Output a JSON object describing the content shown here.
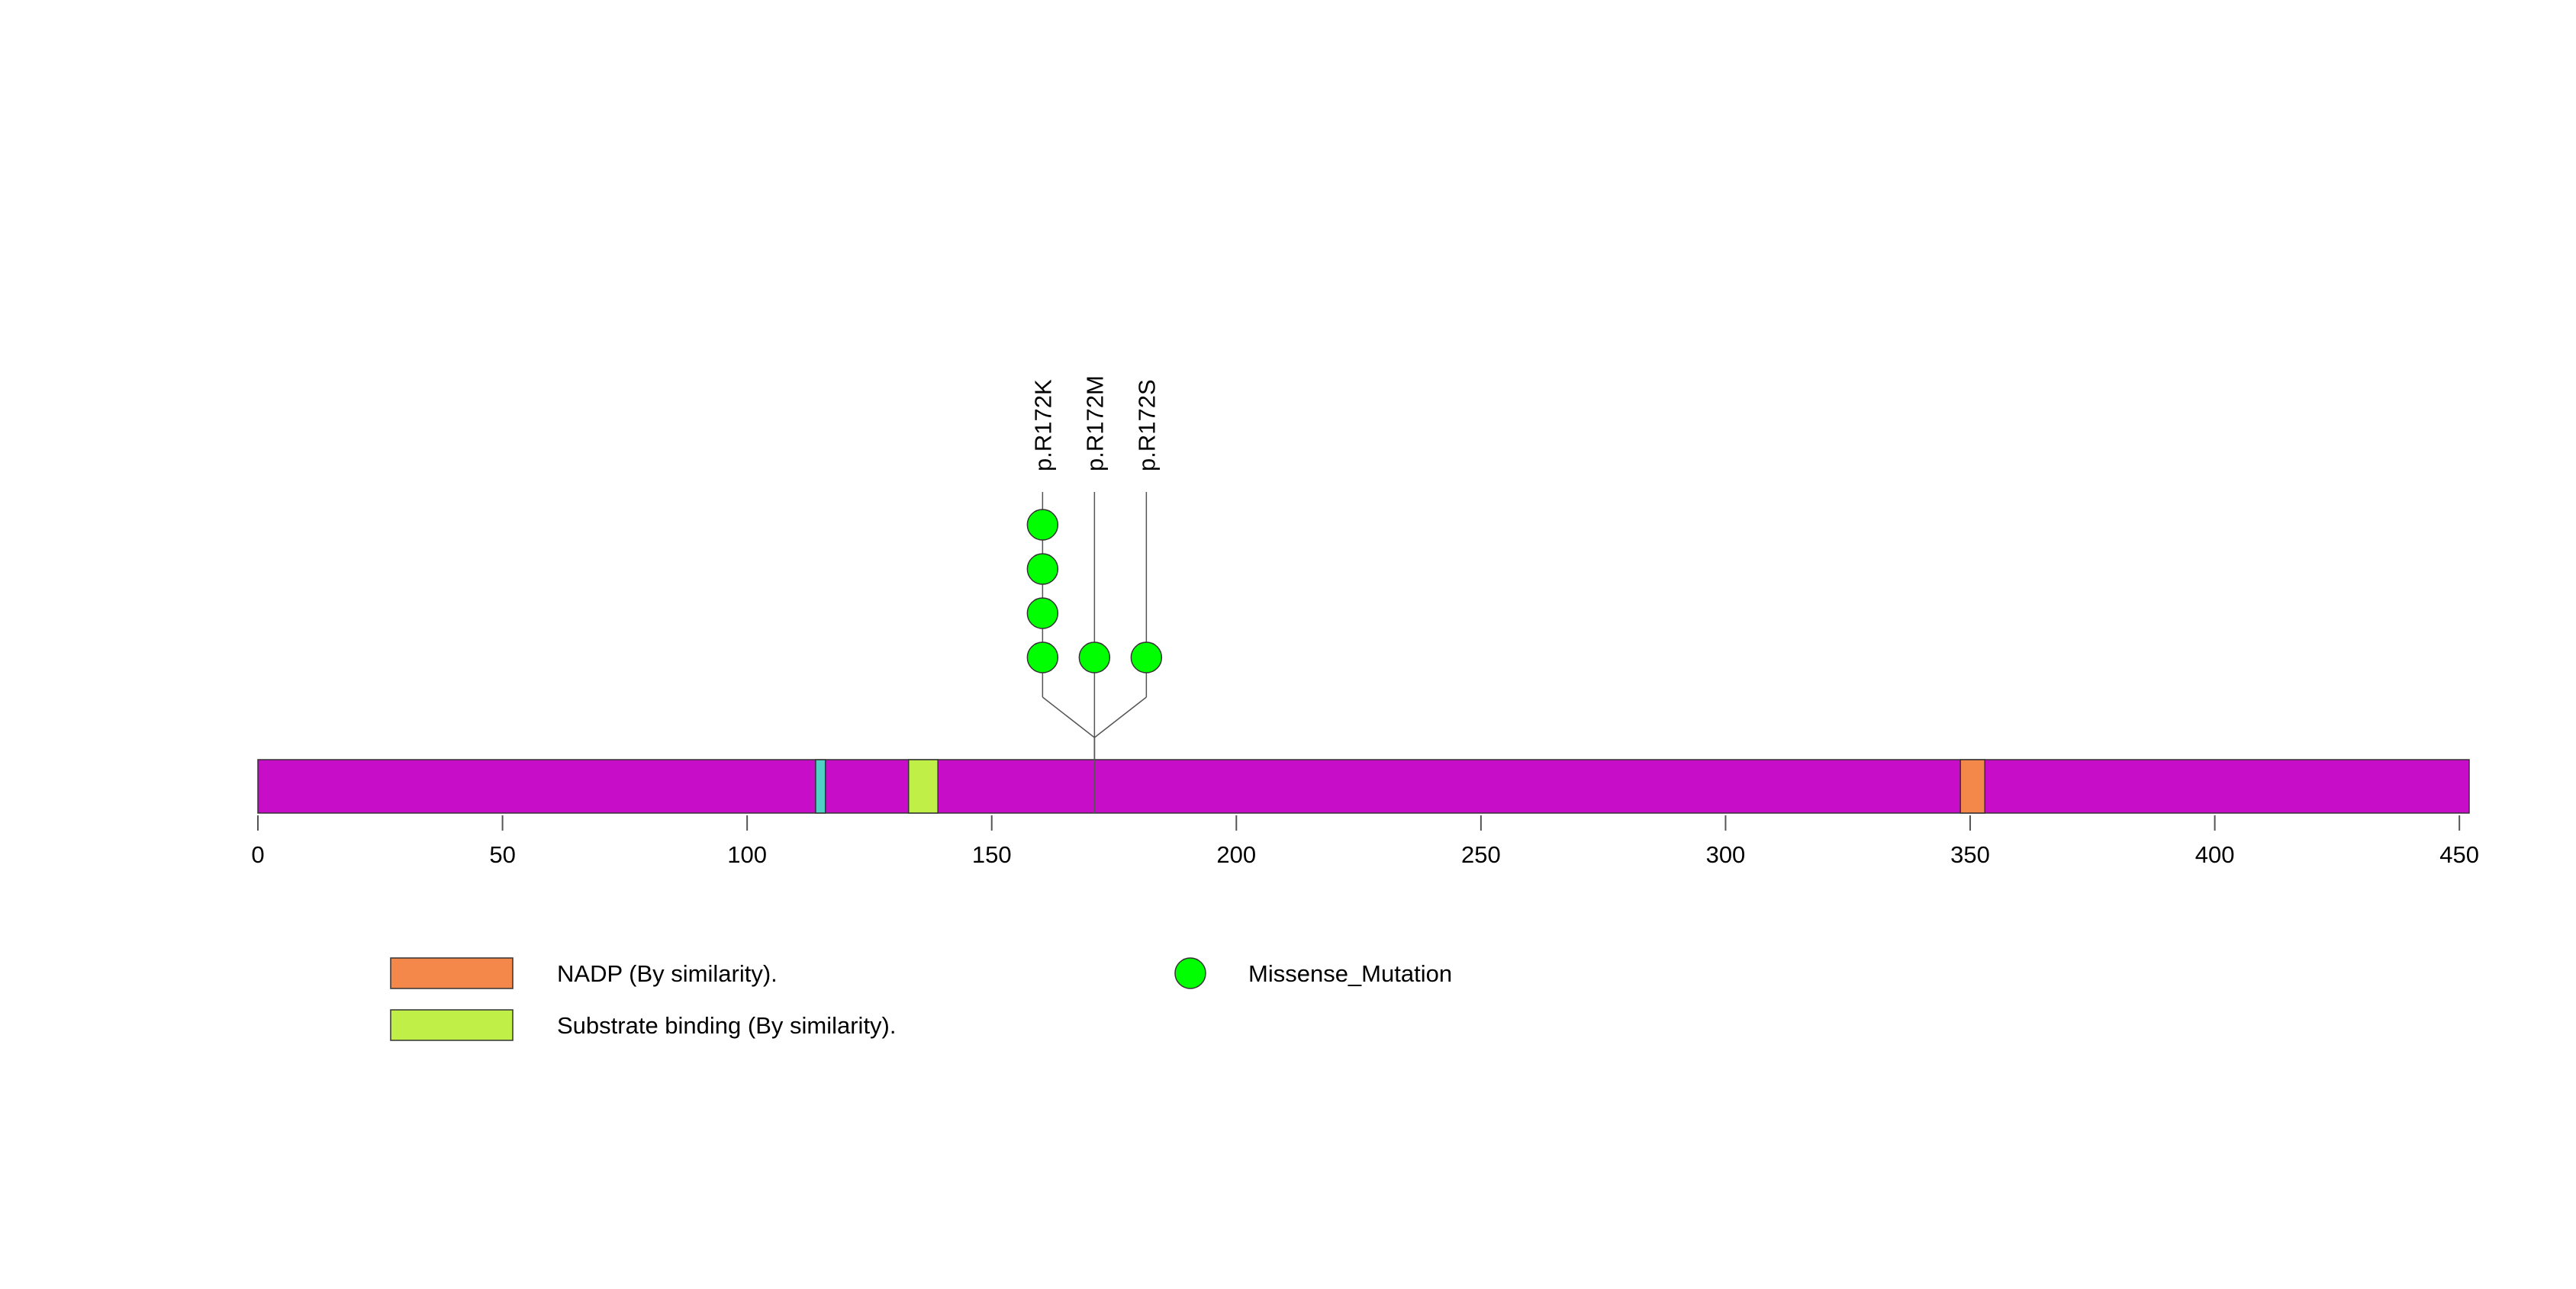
{
  "chart_data": {
    "type": "lollipop",
    "protein_length": 452,
    "x_axis": {
      "ticks": [
        0,
        50,
        100,
        150,
        200,
        250,
        300,
        350,
        400,
        450
      ],
      "range": [
        0,
        452
      ]
    },
    "backbone_color": "#c80dc8",
    "domains": [
      {
        "start": 114,
        "end": 116,
        "color": "#4fd1c5"
      },
      {
        "start": 133,
        "end": 139,
        "color": "#c0f048",
        "legend_index": 1
      },
      {
        "start": 348,
        "end": 353,
        "color": "#f4884a",
        "legend_index": 0
      }
    ],
    "mutations": [
      {
        "label": "p.R172K",
        "position": 171,
        "count": 4,
        "type": "Missense_Mutation"
      },
      {
        "label": "p.R172M",
        "position": 171,
        "count": 1,
        "type": "Missense_Mutation"
      },
      {
        "label": "p.R172S",
        "position": 171,
        "count": 1,
        "type": "Missense_Mutation"
      }
    ],
    "mutation_color": "#00ff00"
  },
  "legend": {
    "domains": [
      {
        "label": "NADP (By similarity).",
        "color": "#f4884a"
      },
      {
        "label": "Substrate binding (By similarity).",
        "color": "#c0f048"
      }
    ],
    "mutation_types": [
      {
        "label": "Missense_Mutation",
        "color": "#00ff00"
      }
    ]
  }
}
